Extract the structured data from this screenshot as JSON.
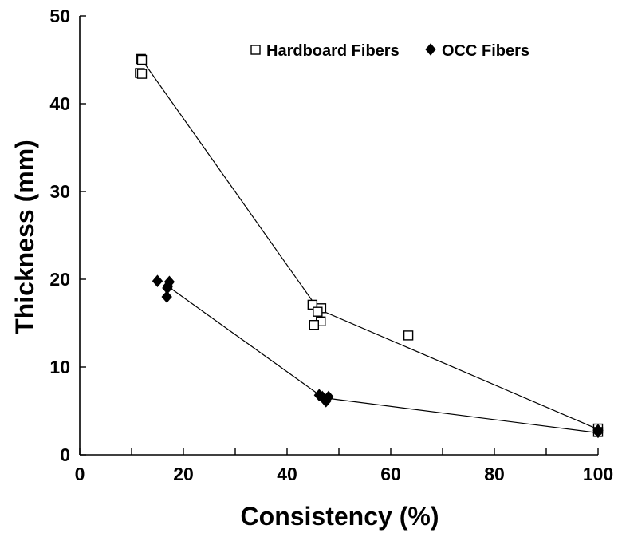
{
  "chart_data": {
    "type": "scatter",
    "xlabel": "Consistency (%)",
    "ylabel": "Thickness (mm)",
    "xlim": [
      0,
      100
    ],
    "ylim": [
      0,
      50
    ],
    "x_major_ticks": [
      0,
      20,
      40,
      60,
      80,
      100
    ],
    "x_minor_ticks": [
      10,
      30,
      50,
      70,
      90
    ],
    "y_major_ticks": [
      0,
      10,
      20,
      30,
      40,
      50
    ],
    "x_tick_labels": [
      "0",
      "20",
      "40",
      "60",
      "80",
      "100"
    ],
    "y_tick_labels": [
      "0",
      "10",
      "20",
      "30",
      "40",
      "50"
    ],
    "grid": false,
    "legend": {
      "position": "top-right",
      "entries": [
        "Hardboard Fibers",
        "OCC Fibers"
      ]
    },
    "series": [
      {
        "name": "Hardboard Fibers",
        "marker": "open-square",
        "color": "#000000",
        "points": [
          {
            "x": 11.8,
            "y": 45.1
          },
          {
            "x": 12.0,
            "y": 45.0
          },
          {
            "x": 11.6,
            "y": 43.5
          },
          {
            "x": 12.0,
            "y": 43.4
          },
          {
            "x": 44.9,
            "y": 17.1
          },
          {
            "x": 46.6,
            "y": 16.7
          },
          {
            "x": 45.9,
            "y": 16.3
          },
          {
            "x": 46.5,
            "y": 15.2
          },
          {
            "x": 45.2,
            "y": 14.8
          },
          {
            "x": 63.4,
            "y": 13.6
          },
          {
            "x": 100,
            "y": 3.0
          },
          {
            "x": 100,
            "y": 2.6
          }
        ],
        "trend": [
          {
            "x": 12,
            "y": 45.0
          },
          {
            "x": 46,
            "y": 16.6
          },
          {
            "x": 100,
            "y": 2.9
          }
        ]
      },
      {
        "name": "OCC Fibers",
        "marker": "filled-diamond",
        "color": "#000000",
        "points": [
          {
            "x": 15.0,
            "y": 19.8
          },
          {
            "x": 17.3,
            "y": 19.7
          },
          {
            "x": 17.0,
            "y": 19.2
          },
          {
            "x": 16.9,
            "y": 19.0
          },
          {
            "x": 16.8,
            "y": 18.0
          },
          {
            "x": 46.2,
            "y": 6.8
          },
          {
            "x": 46.8,
            "y": 6.6
          },
          {
            "x": 48.0,
            "y": 6.6
          },
          {
            "x": 47.1,
            "y": 6.4
          },
          {
            "x": 47.5,
            "y": 6.1
          },
          {
            "x": 100,
            "y": 2.8
          },
          {
            "x": 100,
            "y": 2.6
          }
        ],
        "trend": [
          {
            "x": 17,
            "y": 19.2
          },
          {
            "x": 47,
            "y": 6.5
          },
          {
            "x": 100,
            "y": 2.5
          }
        ]
      }
    ]
  }
}
